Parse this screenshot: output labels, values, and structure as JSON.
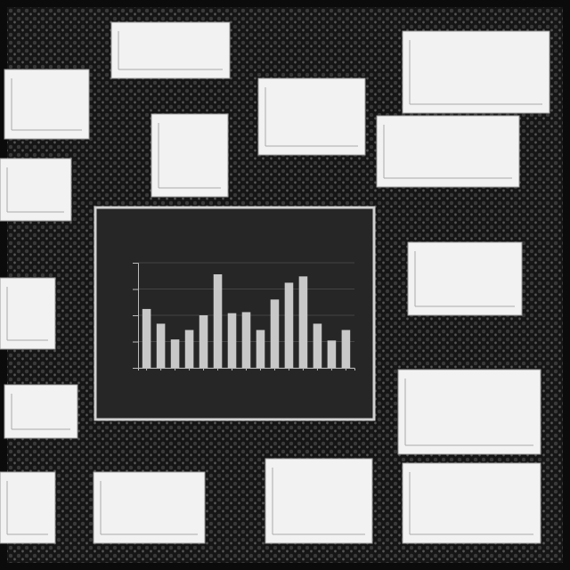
{
  "chart_data": {
    "type": "bar",
    "categories": [
      null,
      null,
      null,
      null,
      null,
      null,
      null,
      null,
      null,
      null,
      null,
      null,
      null,
      null,
      null
    ],
    "values": [
      56,
      42,
      27,
      36,
      50,
      89,
      52,
      53,
      36,
      65,
      81,
      87,
      42,
      26,
      36
    ],
    "color": "#c8c8c8",
    "ylim": [
      0,
      100
    ],
    "yticks": [
      0,
      25,
      50,
      75,
      100
    ],
    "grid": true,
    "tick_labels": false
  }
}
